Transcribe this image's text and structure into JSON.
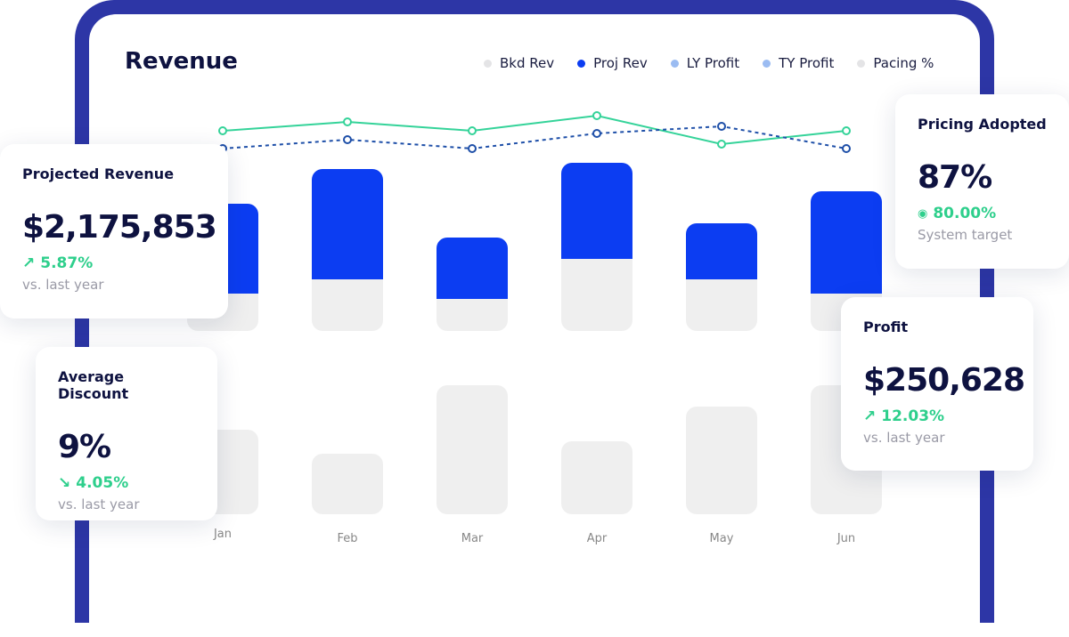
{
  "header": {
    "title": "Revenue"
  },
  "legend": [
    {
      "label": "Bkd Rev",
      "color": "#e4e4e6"
    },
    {
      "label": "Proj Rev",
      "color": "#0c3df2"
    },
    {
      "label": "LY Profit",
      "color": "#9bbcf2"
    },
    {
      "label": "TY Profit",
      "color": "#9bbcf2"
    },
    {
      "label": "Pacing %",
      "color": "#e4e4e6"
    }
  ],
  "chart_data": {
    "type": "bar",
    "categories": [
      "Jan",
      "Feb",
      "Mar",
      "Apr",
      "May",
      "Jun"
    ],
    "series": [
      {
        "name": "Proj Rev",
        "values": [
          101,
          124,
          69,
          108,
          63,
          115
        ],
        "color": "#0c3df2"
      },
      {
        "name": "Bkd Rev",
        "values": [
          42,
          58,
          36,
          81,
          58,
          42
        ],
        "color": "#efefef"
      }
    ],
    "lower_bars": {
      "values": [
        95,
        68,
        145,
        82,
        121,
        145
      ],
      "color": "#efefef"
    },
    "lines": [
      {
        "values": [
          78,
          88,
          78,
          95,
          63,
          78
        ],
        "color": "#34d399",
        "style": "solid"
      },
      {
        "values": [
          58,
          68,
          58,
          75,
          83,
          58
        ],
        "color": "#1e4fa8",
        "style": "dashed"
      }
    ]
  },
  "cards": {
    "projected": {
      "title": "Projected Revenue",
      "value": "$2,175,853",
      "delta": "5.87%",
      "delta_icon": "trend-up",
      "sub": "vs. last year"
    },
    "discount": {
      "title": "Average Discount",
      "value": "9%",
      "delta": "4.05%",
      "delta_icon": "trend-down",
      "sub": "vs. last year"
    },
    "pricing": {
      "title": "Pricing Adopted",
      "value": "87%",
      "delta": "80.00%",
      "delta_icon": "target-dot",
      "sub": "System target"
    },
    "profit": {
      "title": "Profit",
      "value": "$250,628",
      "delta": "12.03%",
      "delta_icon": "trend-up",
      "sub": "vs. last year"
    }
  }
}
